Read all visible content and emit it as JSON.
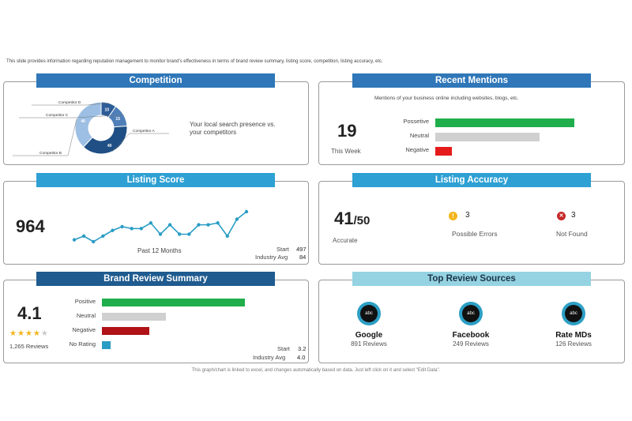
{
  "intro": "This slide provides information regarding reputation management to monitor brand's effectiveness in terms of brand review summary, listing score, competition, listing accuracy, etc.",
  "footnote": "This graph/chart is linked to excel, and changes automatically based on data. Just left click on it and select \"Edit Data\".",
  "competition": {
    "title": "Competition",
    "description_line1": "Your local search presence vs.",
    "description_line2": "your competitors",
    "chart_data": {
      "type": "pie",
      "slices": [
        {
          "label": "Competitor D",
          "value": 10,
          "color": "#2d5d97"
        },
        {
          "label": "Competitor C",
          "value": 15,
          "color": "#4f7fb8"
        },
        {
          "label": "Competitor A",
          "value": 40,
          "color": "#1f4f85"
        },
        {
          "label": "Competitor B",
          "value": 40,
          "color": "#9dbfe4"
        }
      ]
    }
  },
  "recent_mentions": {
    "title": "Recent Mentions",
    "subtitle": "Mentions of your business online including websites, blogs, etc.",
    "count": "19",
    "count_label": "This Week",
    "chart_data": {
      "type": "bar",
      "categories": [
        "Possetive",
        "Neutral",
        "Negative"
      ],
      "values": [
        100,
        75,
        12
      ],
      "colors": [
        "#1fae4b",
        "#d0d0d0",
        "#e51b1b"
      ]
    }
  },
  "listing_score": {
    "title": "Listing Score",
    "score": "964",
    "caption": "Past 12 Months",
    "start_label": "Start",
    "start_value": "497",
    "industry_label": "Industry Avg",
    "industry_value": "84",
    "chart_data": {
      "type": "line",
      "values": [
        2,
        4,
        1,
        4,
        7,
        9,
        8,
        8,
        11,
        5,
        10,
        5,
        5,
        10,
        10,
        11,
        4,
        13,
        17
      ],
      "color": "#2a9dc5"
    }
  },
  "listing_accuracy": {
    "title": "Listing Accuracy",
    "score": "41",
    "total": "/50",
    "score_label": "Accurate",
    "errors_count": "3",
    "errors_label": "Possible  Errors",
    "notfound_count": "3",
    "notfound_label": "Not Found",
    "warning_color": "#f3b51b",
    "error_color": "#c62828"
  },
  "brand_review": {
    "title": "Brand Review Summary",
    "score": "4.1",
    "stars": 4,
    "reviews": "1,265  Reviews",
    "start_label": "Start",
    "start_value": "3.2",
    "industry_label": "Industry Avg",
    "industry_value": "4.0",
    "chart_data": {
      "type": "bar",
      "categories": [
        "Positive",
        "Neutral",
        "Negative",
        "No Rating"
      ],
      "values": [
        100,
        45,
        33,
        6
      ],
      "colors": [
        "#1fae4b",
        "#d0d0d0",
        "#b01217",
        "#2a9dc5"
      ]
    }
  },
  "top_sources": {
    "title": "Top Review Sources",
    "icon_text": "abc",
    "items": [
      {
        "name": "Google",
        "count": "891 Reviews"
      },
      {
        "name": "Facebook",
        "count": "249 Reviews"
      },
      {
        "name": "Rate MDs",
        "count": "126 Reviews"
      }
    ]
  }
}
